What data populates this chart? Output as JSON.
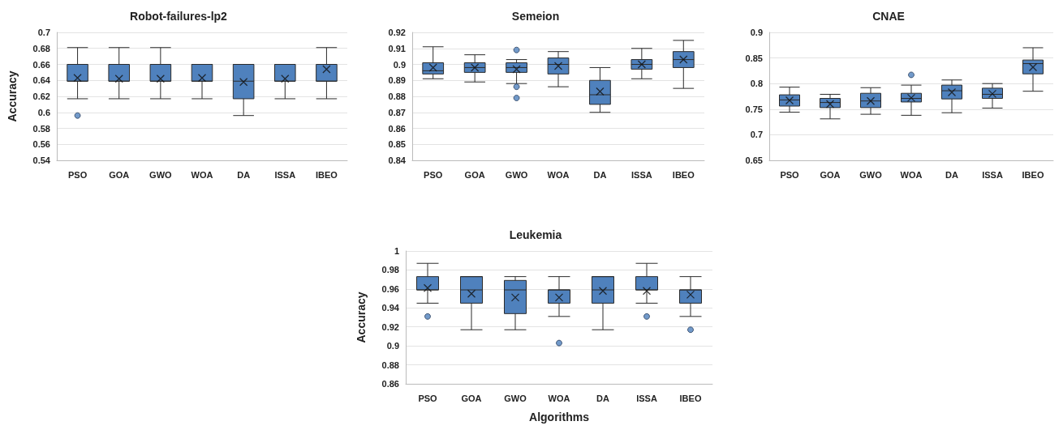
{
  "chart_data": [
    {
      "type": "box",
      "title": "Robot-failures-lp2",
      "ylabel": "Accuracy",
      "categories": [
        "PSO",
        "GOA",
        "GWO",
        "WOA",
        "DA",
        "ISSA",
        "IBEO"
      ],
      "ylim": [
        0.54,
        0.7
      ],
      "yticks": [
        0.54,
        0.56,
        0.58,
        0.6,
        0.62,
        0.64,
        0.66,
        0.68,
        0.7
      ],
      "grid": "y",
      "marker": "cross",
      "series": [
        {
          "color": "#4f81bd",
          "boxes": [
            {
              "low": 0.617,
              "q1": 0.639,
              "median": 0.639,
              "q3": 0.66,
              "high": 0.681,
              "mean": 0.643,
              "outliers": [
                0.596
              ]
            },
            {
              "low": 0.617,
              "q1": 0.639,
              "median": 0.639,
              "q3": 0.66,
              "high": 0.681,
              "mean": 0.642
            },
            {
              "low": 0.617,
              "q1": 0.639,
              "median": 0.639,
              "q3": 0.66,
              "high": 0.681,
              "mean": 0.642
            },
            {
              "low": 0.617,
              "q1": 0.639,
              "median": 0.639,
              "q3": 0.66,
              "high": 0.66,
              "mean": 0.643
            },
            {
              "low": 0.596,
              "q1": 0.617,
              "median": 0.639,
              "q3": 0.66,
              "high": 0.66,
              "mean": 0.638
            },
            {
              "low": 0.617,
              "q1": 0.639,
              "median": 0.639,
              "q3": 0.66,
              "high": 0.66,
              "mean": 0.642
            },
            {
              "low": 0.617,
              "q1": 0.639,
              "median": 0.639,
              "q3": 0.66,
              "high": 0.681,
              "mean": 0.654
            }
          ]
        }
      ]
    },
    {
      "type": "box",
      "title": "Semeion",
      "categories": [
        "PSO",
        "GOA",
        "GWO",
        "WOA",
        "DA",
        "ISSA",
        "IBEO"
      ],
      "ylim": [
        0.84,
        0.92
      ],
      "yticks": [
        0.84,
        0.85,
        0.86,
        0.87,
        0.88,
        0.89,
        0.9,
        0.91,
        0.92
      ],
      "grid": "y",
      "marker": "cross",
      "series": [
        {
          "color": "#4f81bd",
          "boxes": [
            {
              "low": 0.891,
              "q1": 0.894,
              "median": 0.896,
              "q3": 0.901,
              "high": 0.911,
              "mean": 0.898
            },
            {
              "low": 0.889,
              "q1": 0.895,
              "median": 0.898,
              "q3": 0.901,
              "high": 0.906,
              "mean": 0.898
            },
            {
              "low": 0.888,
              "q1": 0.895,
              "median": 0.898,
              "q3": 0.901,
              "high": 0.903,
              "mean": 0.897,
              "outliers": [
                0.909,
                0.886,
                0.879
              ]
            },
            {
              "low": 0.886,
              "q1": 0.894,
              "median": 0.9,
              "q3": 0.904,
              "high": 0.908,
              "mean": 0.899
            },
            {
              "low": 0.87,
              "q1": 0.875,
              "median": 0.881,
              "q3": 0.89,
              "high": 0.898,
              "mean": 0.883
            },
            {
              "low": 0.891,
              "q1": 0.897,
              "median": 0.9,
              "q3": 0.903,
              "high": 0.91,
              "mean": 0.9
            },
            {
              "low": 0.885,
              "q1": 0.898,
              "median": 0.903,
              "q3": 0.908,
              "high": 0.915,
              "mean": 0.903
            }
          ]
        }
      ]
    },
    {
      "type": "box",
      "title": "CNAE",
      "categories": [
        "PSO",
        "GOA",
        "GWO",
        "WOA",
        "DA",
        "ISSA",
        "IBEO"
      ],
      "ylim": [
        0.65,
        0.9
      ],
      "yticks": [
        0.65,
        0.7,
        0.75,
        0.8,
        0.85,
        0.9
      ],
      "grid": "y",
      "marker": "cross",
      "series": [
        {
          "color": "#4f81bd",
          "boxes": [
            {
              "low": 0.744,
              "q1": 0.756,
              "median": 0.768,
              "q3": 0.778,
              "high": 0.793,
              "mean": 0.767
            },
            {
              "low": 0.731,
              "q1": 0.753,
              "median": 0.763,
              "q3": 0.771,
              "high": 0.779,
              "mean": 0.76
            },
            {
              "low": 0.74,
              "q1": 0.753,
              "median": 0.766,
              "q3": 0.781,
              "high": 0.792,
              "mean": 0.766
            },
            {
              "low": 0.738,
              "q1": 0.764,
              "median": 0.771,
              "q3": 0.781,
              "high": 0.797,
              "mean": 0.772,
              "outliers": [
                0.817
              ]
            },
            {
              "low": 0.743,
              "q1": 0.77,
              "median": 0.786,
              "q3": 0.797,
              "high": 0.807,
              "mean": 0.783
            },
            {
              "low": 0.752,
              "q1": 0.771,
              "median": 0.779,
              "q3": 0.791,
              "high": 0.8,
              "mean": 0.78
            },
            {
              "low": 0.785,
              "q1": 0.819,
              "median": 0.839,
              "q3": 0.846,
              "high": 0.87,
              "mean": 0.832
            }
          ]
        }
      ]
    },
    {
      "type": "box",
      "title": "Leukemia",
      "xlabel": "Algorithms",
      "ylabel": "Accuracy",
      "categories": [
        "PSO",
        "GOA",
        "GWO",
        "WOA",
        "DA",
        "ISSA",
        "IBEO"
      ],
      "ylim": [
        0.86,
        1
      ],
      "yticks": [
        0.86,
        0.88,
        0.9,
        0.92,
        0.94,
        0.96,
        0.98,
        1
      ],
      "grid": "y",
      "marker": "cross",
      "series": [
        {
          "color": "#4f81bd",
          "boxes": [
            {
              "low": 0.945,
              "q1": 0.959,
              "median": 0.959,
              "q3": 0.973,
              "high": 0.987,
              "mean": 0.961,
              "outliers": [
                0.931
              ]
            },
            {
              "low": 0.917,
              "q1": 0.945,
              "median": 0.959,
              "q3": 0.973,
              "high": 0.973,
              "mean": 0.955
            },
            {
              "low": 0.917,
              "q1": 0.934,
              "median": 0.959,
              "q3": 0.969,
              "high": 0.973,
              "mean": 0.951
            },
            {
              "low": 0.931,
              "q1": 0.945,
              "median": 0.959,
              "q3": 0.959,
              "high": 0.973,
              "mean": 0.951,
              "outliers": [
                0.903
              ]
            },
            {
              "low": 0.917,
              "q1": 0.945,
              "median": 0.959,
              "q3": 0.973,
              "high": 0.973,
              "mean": 0.958
            },
            {
              "low": 0.945,
              "q1": 0.959,
              "median": 0.959,
              "q3": 0.973,
              "high": 0.987,
              "mean": 0.958,
              "outliers": [
                0.931
              ]
            },
            {
              "low": 0.931,
              "q1": 0.945,
              "median": 0.959,
              "q3": 0.959,
              "high": 0.973,
              "mean": 0.954,
              "outliers": [
                0.917
              ]
            }
          ]
        }
      ]
    }
  ]
}
